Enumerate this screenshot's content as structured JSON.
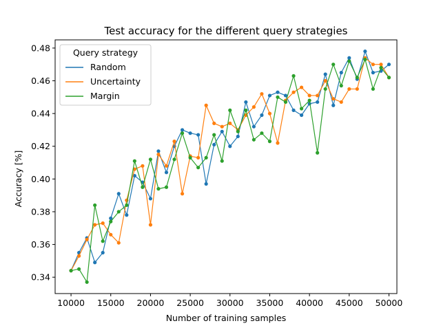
{
  "chart_data": {
    "type": "line",
    "title": "Test accuracy for the different query strategies",
    "xlabel": "Number of training samples",
    "ylabel": "Accuracy [%]",
    "xlim": [
      8000,
      51000
    ],
    "ylim": [
      0.33,
      0.485
    ],
    "xticks": [
      10000,
      15000,
      20000,
      25000,
      30000,
      35000,
      40000,
      45000,
      50000
    ],
    "yticks": [
      0.34,
      0.36,
      0.38,
      0.4,
      0.42,
      0.44,
      0.46,
      0.48
    ],
    "legend": {
      "title": "Query strategy",
      "position": "upper-left"
    },
    "x": [
      10000,
      11000,
      12000,
      13000,
      14000,
      15000,
      16000,
      17000,
      18000,
      19000,
      20000,
      21000,
      22000,
      23000,
      24000,
      25000,
      26000,
      27000,
      28000,
      29000,
      30000,
      31000,
      32000,
      33000,
      34000,
      35000,
      36000,
      37000,
      38000,
      39000,
      40000,
      41000,
      42000,
      43000,
      44000,
      45000,
      46000,
      47000,
      48000,
      49000,
      50000
    ],
    "series": [
      {
        "name": "Random",
        "color": "#1f77b4",
        "values": [
          0.344,
          0.355,
          0.364,
          0.349,
          0.355,
          0.376,
          0.391,
          0.378,
          0.402,
          0.398,
          0.388,
          0.417,
          0.404,
          0.42,
          0.43,
          0.428,
          0.427,
          0.397,
          0.421,
          0.429,
          0.42,
          0.426,
          0.447,
          0.432,
          0.439,
          0.451,
          0.453,
          0.451,
          0.442,
          0.439,
          0.446,
          0.447,
          0.464,
          0.445,
          0.465,
          0.474,
          0.461,
          0.478,
          0.465,
          0.466,
          0.47
        ]
      },
      {
        "name": "Uncertainty",
        "color": "#ff7f0e",
        "values": [
          0.344,
          0.353,
          0.363,
          0.372,
          0.373,
          0.366,
          0.361,
          0.387,
          0.406,
          0.408,
          0.372,
          0.415,
          0.408,
          0.423,
          0.391,
          0.414,
          0.413,
          0.445,
          0.434,
          0.432,
          0.434,
          0.43,
          0.439,
          0.444,
          0.452,
          0.44,
          0.422,
          0.448,
          0.453,
          0.456,
          0.451,
          0.451,
          0.46,
          0.449,
          0.447,
          0.455,
          0.455,
          0.474,
          0.47,
          0.47,
          0.462
        ]
      },
      {
        "name": "Margin",
        "color": "#2ca02c",
        "values": [
          0.344,
          0.345,
          0.337,
          0.384,
          0.362,
          0.374,
          0.38,
          0.384,
          0.411,
          0.395,
          0.412,
          0.394,
          0.395,
          0.412,
          0.428,
          0.413,
          0.407,
          0.413,
          0.427,
          0.411,
          0.442,
          0.429,
          0.442,
          0.424,
          0.428,
          0.423,
          0.45,
          0.447,
          0.463,
          0.443,
          0.448,
          0.416,
          0.455,
          0.47,
          0.457,
          0.472,
          0.462,
          0.473,
          0.455,
          0.468,
          0.462
        ]
      }
    ]
  }
}
